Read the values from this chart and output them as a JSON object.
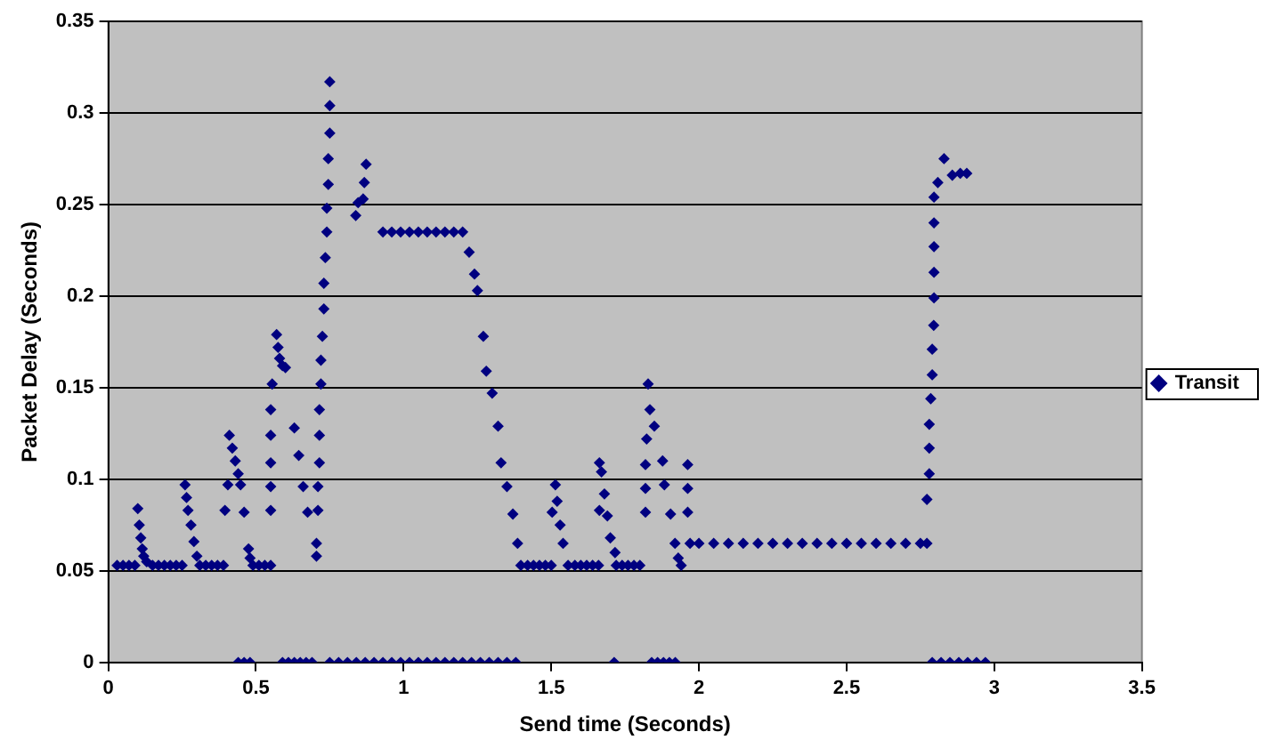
{
  "chart_data": {
    "type": "scatter",
    "xlabel": "Send time (Seconds)",
    "ylabel": "Packet Delay (Seconds)",
    "xlim": [
      0,
      3.5
    ],
    "xticks": [
      0,
      0.5,
      1,
      1.5,
      2,
      2.5,
      3,
      3.5
    ],
    "ylim": [
      0,
      0.35
    ],
    "yticks": [
      0,
      0.05,
      0.1,
      0.15,
      0.2,
      0.25,
      0.3,
      0.35
    ],
    "grid": "y",
    "legend": "right",
    "marker": "diamond",
    "series": [
      {
        "name": "Transit",
        "color": "#000080",
        "x": [
          0.03,
          0.05,
          0.07,
          0.09,
          0.1,
          0.105,
          0.11,
          0.115,
          0.12,
          0.13,
          0.15,
          0.17,
          0.19,
          0.21,
          0.23,
          0.25,
          0.26,
          0.265,
          0.27,
          0.28,
          0.29,
          0.3,
          0.31,
          0.33,
          0.35,
          0.37,
          0.39,
          0.395,
          0.405,
          0.41,
          0.42,
          0.43,
          0.44,
          0.448,
          0.46,
          0.475,
          0.48,
          0.49,
          0.51,
          0.53,
          0.55,
          0.44,
          0.46,
          0.48,
          0.55,
          0.55,
          0.55,
          0.55,
          0.55,
          0.555,
          0.57,
          0.575,
          0.58,
          0.59,
          0.6,
          0.63,
          0.645,
          0.66,
          0.675,
          0.705,
          0.705,
          0.71,
          0.71,
          0.715,
          0.715,
          0.715,
          0.72,
          0.72,
          0.725,
          0.73,
          0.73,
          0.735,
          0.74,
          0.74,
          0.745,
          0.745,
          0.75,
          0.75,
          0.75,
          0.838,
          0.846,
          0.863,
          0.867,
          0.873,
          0.93,
          0.96,
          0.99,
          1.02,
          1.05,
          1.08,
          1.11,
          1.14,
          1.17,
          1.2,
          1.222,
          1.24,
          1.25,
          1.27,
          1.28,
          1.3,
          1.32,
          1.33,
          1.35,
          1.37,
          1.386,
          1.397,
          1.42,
          1.44,
          1.46,
          1.48,
          1.5,
          1.503,
          1.514,
          1.52,
          1.53,
          1.54,
          1.557,
          1.58,
          1.6,
          1.62,
          1.64,
          1.66,
          1.663,
          1.663,
          1.67,
          1.68,
          1.69,
          1.7,
          1.716,
          1.72,
          1.74,
          1.76,
          1.78,
          1.8,
          1.828,
          1.834,
          1.849,
          1.823,
          1.819,
          1.819,
          1.819,
          1.877,
          1.883,
          1.904,
          1.962,
          1.962,
          1.962,
          1.919,
          1.93,
          1.94,
          1.97,
          2.0,
          2.05,
          2.1,
          2.15,
          2.2,
          2.25,
          2.3,
          2.35,
          2.4,
          2.45,
          2.5,
          2.55,
          2.6,
          2.65,
          2.7,
          2.75,
          2.772,
          2.772,
          2.78,
          2.78,
          2.78,
          2.785,
          2.79,
          2.79,
          2.795,
          2.796,
          2.796,
          2.796,
          2.796,
          2.796,
          2.809,
          2.83,
          2.858,
          2.885,
          2.907,
          0.59,
          0.61,
          0.63,
          0.65,
          0.67,
          0.69,
          0.75,
          0.78,
          0.81,
          0.84,
          0.87,
          0.9,
          0.93,
          0.96,
          0.99,
          1.02,
          1.05,
          1.08,
          1.11,
          1.14,
          1.17,
          1.2,
          1.23,
          1.26,
          1.29,
          1.32,
          1.35,
          1.38,
          1.713,
          1.84,
          1.86,
          1.88,
          1.9,
          1.92,
          2.79,
          2.82,
          2.85,
          2.88,
          2.91,
          2.94,
          2.97
        ],
        "values": [
          0.053,
          0.053,
          0.053,
          0.053,
          0.084,
          0.075,
          0.068,
          0.062,
          0.058,
          0.055,
          0.053,
          0.053,
          0.053,
          0.053,
          0.053,
          0.053,
          0.097,
          0.09,
          0.083,
          0.075,
          0.066,
          0.058,
          0.053,
          0.053,
          0.053,
          0.053,
          0.053,
          0.083,
          0.097,
          0.124,
          0.117,
          0.11,
          0.103,
          0.097,
          0.082,
          0.062,
          0.057,
          0.053,
          0.053,
          0.053,
          0.053,
          0,
          0,
          0,
          0.083,
          0.096,
          0.109,
          0.124,
          0.138,
          0.152,
          0.179,
          0.172,
          0.166,
          0.162,
          0.161,
          0.128,
          0.113,
          0.096,
          0.082,
          0.065,
          0.058,
          0.083,
          0.096,
          0.109,
          0.124,
          0.138,
          0.152,
          0.165,
          0.178,
          0.193,
          0.207,
          0.221,
          0.235,
          0.248,
          0.261,
          0.275,
          0.289,
          0.304,
          0.317,
          0.244,
          0.251,
          0.253,
          0.262,
          0.272,
          0.235,
          0.235,
          0.235,
          0.235,
          0.235,
          0.235,
          0.235,
          0.235,
          0.235,
          0.235,
          0.224,
          0.212,
          0.203,
          0.178,
          0.159,
          0.147,
          0.129,
          0.109,
          0.096,
          0.081,
          0.065,
          0.053,
          0.053,
          0.053,
          0.053,
          0.053,
          0.053,
          0.082,
          0.097,
          0.088,
          0.075,
          0.065,
          0.053,
          0.053,
          0.053,
          0.053,
          0.053,
          0.053,
          0.109,
          0.083,
          0.104,
          0.092,
          0.08,
          0.068,
          0.06,
          0.053,
          0.053,
          0.053,
          0.053,
          0.053,
          0.152,
          0.138,
          0.129,
          0.122,
          0.108,
          0.095,
          0.082,
          0.11,
          0.097,
          0.081,
          0.108,
          0.095,
          0.082,
          0.065,
          0.057,
          0.053,
          0.065,
          0.065,
          0.065,
          0.065,
          0.065,
          0.065,
          0.065,
          0.065,
          0.065,
          0.065,
          0.065,
          0.065,
          0.065,
          0.065,
          0.065,
          0.065,
          0.065,
          0.065,
          0.089,
          0.103,
          0.117,
          0.13,
          0.144,
          0.157,
          0.171,
          0.184,
          0.199,
          0.213,
          0.227,
          0.24,
          0.254,
          0.262,
          0.275,
          0.266,
          0.267,
          0.267,
          0,
          0,
          0,
          0,
          0,
          0,
          0,
          0,
          0,
          0,
          0,
          0,
          0,
          0,
          0,
          0,
          0,
          0,
          0,
          0,
          0,
          0,
          0,
          0,
          0,
          0,
          0,
          0,
          0,
          0,
          0,
          0,
          0,
          0,
          0,
          0,
          0,
          0,
          0,
          0,
          0
        ]
      }
    ]
  }
}
